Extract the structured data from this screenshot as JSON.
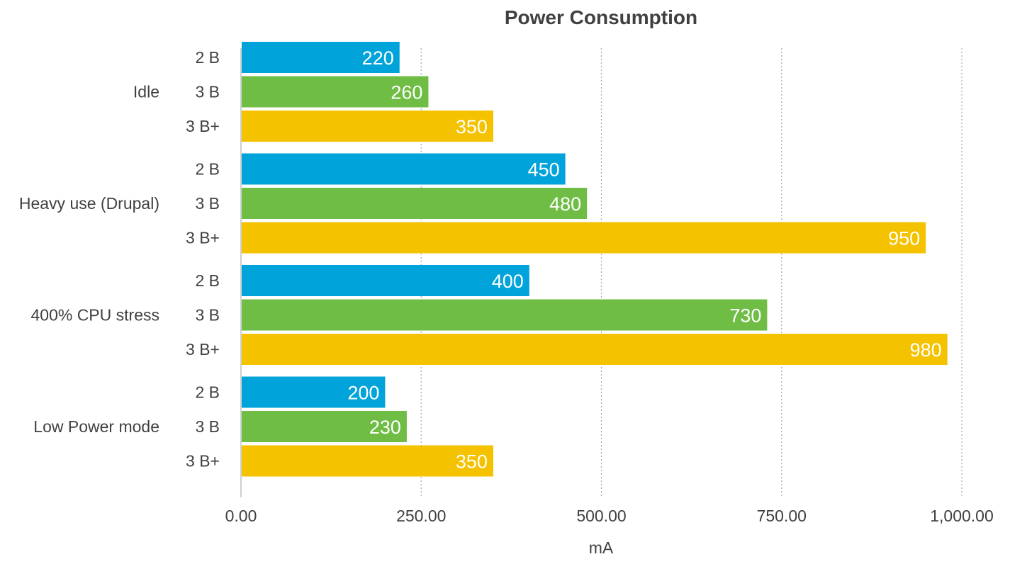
{
  "chart_data": {
    "type": "bar",
    "orientation": "horizontal",
    "title": "Power Consumption",
    "xlabel": "mA",
    "ylabel": "",
    "xlim": [
      0,
      1000
    ],
    "x_ticks": [
      0,
      250,
      500,
      750,
      1000
    ],
    "x_tick_labels": [
      "0.00",
      "250.00",
      "500.00",
      "750.00",
      "1,000.00"
    ],
    "grid": "vertical-dotted",
    "categories": [
      "Idle",
      "Heavy use (Drupal)",
      "400% CPU stress",
      "Low Power mode"
    ],
    "series": [
      {
        "name": "2 B",
        "color": "#00a3da",
        "values": [
          220,
          450,
          400,
          200
        ]
      },
      {
        "name": "3 B",
        "color": "#6fbd45",
        "values": [
          260,
          480,
          730,
          230
        ]
      },
      {
        "name": "3 B+",
        "color": "#f5c200",
        "values": [
          350,
          950,
          980,
          350
        ]
      }
    ]
  },
  "colors": {
    "text": "#404040",
    "grid": "#a6a6a6",
    "axis": "#bfbfbf",
    "value_label": "#ffffff"
  }
}
